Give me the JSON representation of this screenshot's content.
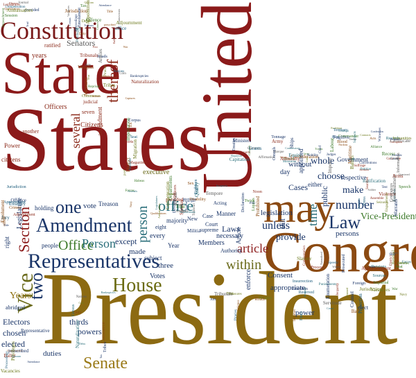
{
  "big_words": {
    "president": "President",
    "states": "States",
    "state": "State",
    "united": "United",
    "congress": "Congress",
    "may": "may",
    "constitution": "Constitution",
    "representatives": "Representatives",
    "house": "House",
    "amendment": "Amendment",
    "senate": "Senate",
    "vice": "Vice",
    "law": "Law",
    "office": "office",
    "office_cap": "Office",
    "person": "person",
    "person_cap": "Person",
    "one": "one",
    "two": "two",
    "section": "Section",
    "within": "within",
    "article": "article",
    "time": "time",
    "number": "number",
    "thereof": "thereof",
    "several": "several",
    "vice_president": "Vice-President",
    "years": "Years",
    "elected": "elected",
    "electors": "Electors",
    "chosen": "chosen",
    "duties": "duties",
    "powers": "powers",
    "thirds": "thirds",
    "senators": "Senators",
    "laws": "Laws",
    "unless": "unless",
    "provide": "provide",
    "consent": "Consent",
    "appropriate": "appropriate",
    "power": "power",
    "choose": "choose",
    "make": "make",
    "whole": "whole",
    "public": "public",
    "cases": "Cases",
    "executive": "executive",
    "citizens": "Citizens",
    "officers": "Officers",
    "amendment_lc": "amendment",
    "every": "every",
    "except": "except",
    "made": "made",
    "votes": "Votes",
    "three": "three",
    "members": "Members",
    "necessary": "necessary",
    "enforce": "enforce",
    "without": "without",
    "legislation": "legislation",
    "legislature": "Legislature",
    "right": "right",
    "people": "people",
    "year": "Year",
    "subject": "subject",
    "court": "Court",
    "treason": "Treason",
    "vote": "vote",
    "holding": "holding",
    "majority": "majority",
    "persons": "persons",
    "bill": "Bill",
    "manner": "Manner",
    "another": "another",
    "seven": "seven",
    "age": "Age",
    "day": "day",
    "years_lc": "years",
    "new": "New",
    "representative": "Representative",
    "militia": "Militia",
    "authority": "Authority",
    "government": "Government",
    "respective": "respective",
    "either": "either",
    "power_cap": "Power",
    "citizens_lc": "citizens",
    "ratified": "ratified",
    "judicial": "judicial",
    "service": "Service",
    "office_lc2": "Office",
    "supreme": "supreme",
    "eight": "eight",
    "article_cap": "Article",
    "case": "Case",
    "abridged": "abridged",
    "state_lc": "State",
    "appointed": "appointed",
    "pay": "pay",
    "vote_lc": "vote",
    "elect": "elect"
  },
  "small_words": [
    "Legislatures",
    "provided",
    "Journal",
    "Qualifications",
    "Trial",
    "Compensation",
    "Session",
    "Electors",
    "Impeachment",
    "Ambassadors",
    "Jurisdiction",
    "Treasury",
    "Offence",
    "Appointment",
    "Jury",
    "office",
    "Emolument",
    "Title",
    "Crimes",
    "Adjournment",
    "Controversies",
    "prescribed",
    "Vacancies",
    "Ballot",
    "Proceedings",
    "Privileges",
    "Attendance",
    "Quorum",
    "Duty",
    "Tax",
    "Census",
    "Debts",
    "Commerce",
    "Nations",
    "Tribes",
    "Naturalization",
    "Bankruptcies",
    "Coin",
    "Weights",
    "Measures",
    "Post",
    "Roads",
    "Science",
    "Arts",
    "Tribunals",
    "Piracies",
    "Felonies",
    "Seas",
    "War",
    "Reprisal",
    "Captures",
    "Armies",
    "Navy",
    "Forces",
    "District",
    "Seat",
    "Forts",
    "Magazines",
    "Arsenals",
    "Migration",
    "Importation",
    "Habeas",
    "Corpus",
    "Attainder",
    "Ex",
    "post",
    "facto",
    "Capitation",
    "Imports",
    "Exports",
    "Ports",
    "Tonnage",
    "Troops",
    "Ships",
    "Compact",
    "Alliance",
    "Confederation",
    "Marque",
    "Currency",
    "Tender",
    "Contracts",
    "Nobility",
    "Lists",
    "Ballots",
    "Certificate",
    "Oath",
    "Affirmation",
    "Commander",
    "Chief",
    "Army",
    "Pardons",
    "Reprieves",
    "Treaties",
    "Ministers",
    "Consuls",
    "Judges",
    "Recess",
    "Commissions",
    "Information",
    "Union",
    "Measures",
    "Occasions",
    "Equity",
    "Admiralty",
    "Maritime",
    "Grants",
    "Subjects",
    "Evidence",
    "Witnesses",
    "Confession",
    "Corruption",
    "Blood",
    "Forfeiture",
    "Records",
    "Acts",
    "Immunities",
    "Fugitive",
    "Labour",
    "Territory",
    "Property",
    "Guarantee",
    "Republican",
    "Invasion",
    "Violence",
    "Conventions",
    "Suffrage",
    "Engagements",
    "Religious",
    "Test",
    "Ratification",
    "Establishment",
    "Speech",
    "Press",
    "Assemble",
    "Petition",
    "Grievances",
    "Arms",
    "Soldier",
    "Quartered",
    "Searches",
    "Seizures",
    "Warrants",
    "Probable",
    "Cause",
    "Jeopardy",
    "Witness",
    "Process",
    "Compensation",
    "Speedy",
    "Impartial",
    "Counsel",
    "Bail",
    "Fines",
    "Punishments",
    "Enumeration",
    "Retained",
    "Reserved",
    "Prosecuted",
    "Foreign",
    "Slavery",
    "Servitude",
    "Crime",
    "Naturalized",
    "Jurisdiction",
    "Protection",
    "Insurrection",
    "Rebellion",
    "Pensions",
    "Bounties",
    "Incomes",
    "Sources",
    "Apportionment",
    "Vacancies",
    "Writs",
    "Intoxicating",
    "Liquors",
    "Prohibited",
    "Sex",
    "Noon",
    "Terms",
    "Death",
    "Devolve",
    "Qualify",
    "Twice",
    "Acting",
    "Poll",
    "Incapacity",
    "Disability",
    "Declaration",
    "Transmit",
    "Tempore",
    "Speaker",
    "Principal",
    "Officers",
    "Departments",
    "Eighteen"
  ]
}
